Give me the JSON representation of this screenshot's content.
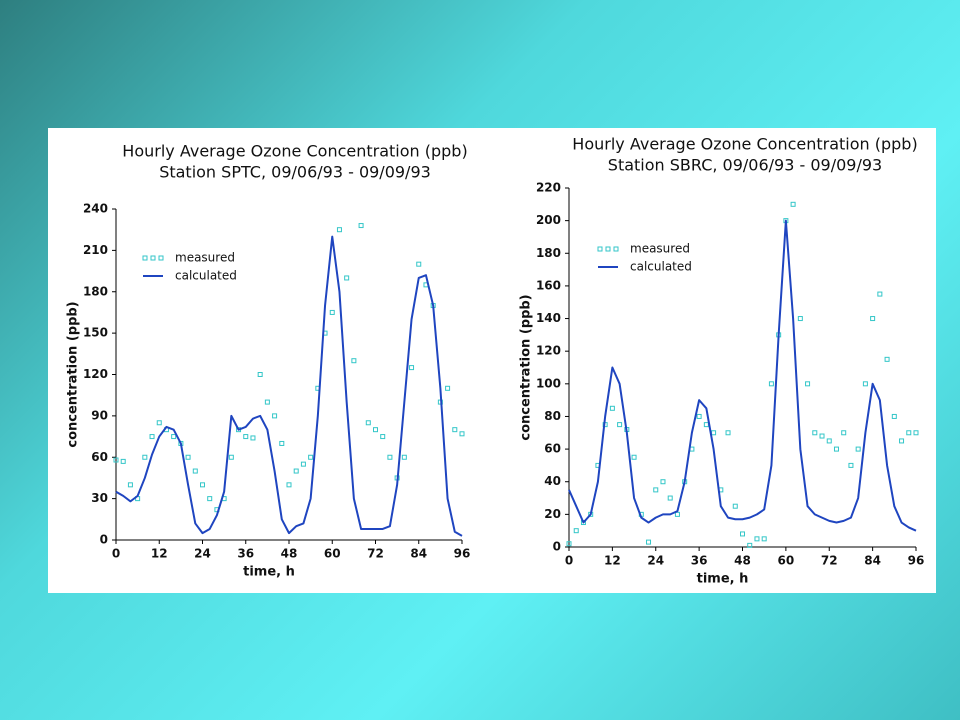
{
  "chart_data": [
    {
      "type": "line",
      "title": "Hourly Average Ozone Concentration (ppb)",
      "subtitle": "Station SPTC, 09/06/93 - 09/09/93",
      "x_label": "time, h",
      "y_label": "concentration (ppb)",
      "x": [
        0,
        2,
        4,
        6,
        8,
        10,
        12,
        14,
        16,
        18,
        20,
        22,
        24,
        26,
        28,
        30,
        32,
        34,
        36,
        38,
        40,
        42,
        44,
        46,
        48,
        50,
        52,
        54,
        56,
        58,
        60,
        62,
        64,
        66,
        68,
        70,
        72,
        74,
        76,
        78,
        80,
        82,
        84,
        86,
        88,
        90,
        92,
        94,
        96
      ],
      "series": [
        {
          "name": "measured",
          "style": "markers",
          "color": "#33c6c8",
          "values": [
            58,
            57,
            40,
            30,
            60,
            75,
            85,
            80,
            75,
            70,
            60,
            50,
            40,
            30,
            22,
            30,
            60,
            80,
            75,
            74,
            120,
            100,
            90,
            70,
            40,
            50,
            55,
            60,
            110,
            150,
            165,
            225,
            190,
            130,
            228,
            85,
            80,
            75,
            60,
            45,
            60,
            125,
            200,
            185,
            170,
            100,
            110,
            80,
            77
          ]
        },
        {
          "name": "calculated",
          "style": "line",
          "color": "#1f45c0",
          "values": [
            35,
            32,
            28,
            32,
            45,
            62,
            75,
            82,
            80,
            70,
            40,
            12,
            5,
            8,
            18,
            35,
            90,
            80,
            82,
            88,
            90,
            80,
            50,
            15,
            5,
            10,
            12,
            30,
            90,
            170,
            220,
            180,
            100,
            30,
            8,
            8,
            8,
            8,
            10,
            40,
            100,
            160,
            190,
            192,
            170,
            110,
            30,
            6,
            3
          ]
        }
      ],
      "xlim": [
        0,
        96
      ],
      "xticks": [
        0,
        12,
        24,
        36,
        48,
        60,
        72,
        84,
        96
      ],
      "ylim": [
        0,
        240
      ],
      "yticks": [
        0,
        30,
        60,
        90,
        120,
        150,
        180,
        210,
        240
      ]
    },
    {
      "type": "line",
      "title": "Hourly Average Ozone Concentration (ppb)",
      "subtitle": "Station SBRC, 09/06/93 - 09/09/93",
      "x_label": "time, h",
      "y_label": "concentration (ppb)",
      "x": [
        0,
        2,
        4,
        6,
        8,
        10,
        12,
        14,
        16,
        18,
        20,
        22,
        24,
        26,
        28,
        30,
        32,
        34,
        36,
        38,
        40,
        42,
        44,
        46,
        48,
        50,
        52,
        54,
        56,
        58,
        60,
        62,
        64,
        66,
        68,
        70,
        72,
        74,
        76,
        78,
        80,
        82,
        84,
        86,
        88,
        90,
        92,
        94,
        96
      ],
      "series": [
        {
          "name": "measured",
          "style": "markers",
          "color": "#33c6c8",
          "values": [
            2,
            10,
            15,
            20,
            50,
            75,
            85,
            75,
            72,
            55,
            20,
            3,
            35,
            40,
            30,
            20,
            40,
            60,
            80,
            75,
            70,
            35,
            70,
            25,
            8,
            1,
            5,
            5,
            100,
            130,
            200,
            210,
            140,
            100,
            70,
            68,
            65,
            60,
            70,
            50,
            60,
            100,
            140,
            155,
            115,
            80,
            65,
            70,
            70
          ]
        },
        {
          "name": "calculated",
          "style": "line",
          "color": "#1f45c0",
          "values": [
            35,
            25,
            15,
            20,
            40,
            80,
            110,
            100,
            70,
            30,
            18,
            15,
            18,
            20,
            20,
            22,
            40,
            70,
            90,
            85,
            60,
            25,
            18,
            17,
            17,
            18,
            20,
            23,
            50,
            130,
            200,
            140,
            60,
            25,
            20,
            18,
            16,
            15,
            16,
            18,
            30,
            70,
            100,
            90,
            50,
            25,
            15,
            12,
            10
          ]
        }
      ],
      "xlim": [
        0,
        96
      ],
      "xticks": [
        0,
        12,
        24,
        36,
        48,
        60,
        72,
        84,
        96
      ],
      "ylim": [
        0,
        220
      ],
      "yticks": [
        0,
        20,
        40,
        60,
        80,
        100,
        120,
        140,
        160,
        180,
        200,
        220
      ]
    }
  ]
}
